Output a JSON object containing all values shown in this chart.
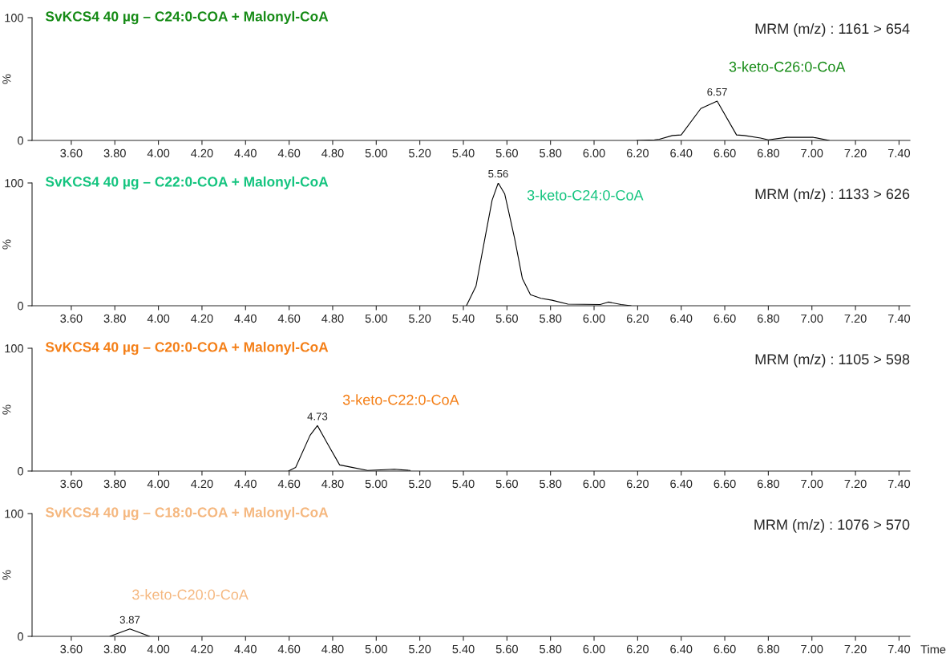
{
  "chart_data": [
    {
      "type": "line",
      "title": "SvKCS4 40 µg – C24:0-COA + Malonyl-CoA",
      "ylabel": "%",
      "xlim": [
        3.42,
        7.45
      ],
      "ylim": [
        0,
        100
      ],
      "yticks": [
        0,
        100
      ],
      "xticks": [
        {
          "value": 3.6,
          "label": "3.60"
        },
        {
          "value": 3.8,
          "label": "3.80"
        },
        {
          "value": 4.0,
          "label": "4.00"
        },
        {
          "value": 4.2,
          "label": "4.20"
        },
        {
          "value": 4.4,
          "label": "4.40"
        },
        {
          "value": 4.6,
          "label": "4.60"
        },
        {
          "value": 4.8,
          "label": "4.80"
        },
        {
          "value": 5.0,
          "label": "5.00"
        },
        {
          "value": 5.2,
          "label": "5.20"
        },
        {
          "value": 5.4,
          "label": "5.40"
        },
        {
          "value": 5.6,
          "label": "5.60"
        },
        {
          "value": 5.8,
          "label": "5.80"
        },
        {
          "value": 6.0,
          "label": "6.00"
        },
        {
          "value": 6.2,
          "label": "6.20"
        },
        {
          "value": 6.4,
          "label": "6.40"
        },
        {
          "value": 6.6,
          "label": "6.60"
        },
        {
          "value": 6.8,
          "label": "6.80"
        },
        {
          "value": 7.0,
          "label": "7.00"
        },
        {
          "value": 7.2,
          "label": "7.20"
        },
        {
          "value": 7.4,
          "label": "7.40"
        }
      ],
      "series": [
        {
          "name": "3-keto-C26:0-CoA",
          "color": "#000000",
          "x": [
            6.196,
            6.277,
            6.3,
            6.36,
            6.4,
            6.49,
            6.565,
            6.654,
            6.69,
            6.764,
            6.8,
            6.885,
            7.007,
            7.08
          ],
          "values": [
            0,
            0.5,
            1,
            4,
            4.5,
            26,
            32,
            4.5,
            4,
            2,
            0.5,
            2.5,
            2.5,
            0
          ]
        }
      ],
      "annotations": [
        "MRM (m/z) : 1161 > 654",
        {
          "text": "6.57",
          "x": 6.565,
          "y": 32
        }
      ],
      "grid": false,
      "legend": false
    },
    {
      "type": "line",
      "title": "SvKCS4 40 µg – C22:0-COA + Malonyl-CoA",
      "ylabel": "%",
      "xlim": [
        3.42,
        7.45
      ],
      "ylim": [
        0,
        100
      ],
      "yticks": [
        0,
        100
      ],
      "xticks": [
        {
          "value": 3.6,
          "label": "3.60"
        },
        {
          "value": 3.8,
          "label": "3.80"
        },
        {
          "value": 4.0,
          "label": "4.00"
        },
        {
          "value": 4.2,
          "label": "4.20"
        },
        {
          "value": 4.4,
          "label": "4.40"
        },
        {
          "value": 4.6,
          "label": "4.60"
        },
        {
          "value": 4.8,
          "label": "4.80"
        },
        {
          "value": 5.0,
          "label": "5.00"
        },
        {
          "value": 5.2,
          "label": "5.20"
        },
        {
          "value": 5.4,
          "label": "5.40"
        },
        {
          "value": 5.6,
          "label": "5.60"
        },
        {
          "value": 5.8,
          "label": "5.80"
        },
        {
          "value": 6.0,
          "label": "6.00"
        },
        {
          "value": 6.2,
          "label": "6.20"
        },
        {
          "value": 6.4,
          "label": "6.40"
        },
        {
          "value": 6.6,
          "label": "6.60"
        },
        {
          "value": 6.8,
          "label": "6.80"
        },
        {
          "value": 7.0,
          "label": "7.00"
        },
        {
          "value": 7.2,
          "label": "7.20"
        },
        {
          "value": 7.4,
          "label": "7.40"
        }
      ],
      "series": [
        {
          "name": "3-keto-C24:0-CoA",
          "color": "#000000",
          "x": [
            5.414,
            5.458,
            5.499,
            5.532,
            5.56,
            5.59,
            5.635,
            5.671,
            5.708,
            5.756,
            5.807,
            5.88,
            6.028,
            6.065,
            6.124,
            6.17
          ],
          "values": [
            0,
            16,
            55,
            86,
            100,
            91,
            55,
            22,
            9,
            6,
            4.5,
            1.3,
            1,
            3,
            1,
            0
          ]
        }
      ],
      "annotations": [
        "MRM (m/z) : 1133 > 626",
        {
          "text": "5.56",
          "x": 5.56,
          "y": 100
        }
      ],
      "grid": false,
      "legend": false
    },
    {
      "type": "line",
      "title": "SvKCS4 40 µg – C20:0-COA + Malonyl-CoA",
      "ylabel": "%",
      "xlim": [
        3.42,
        7.45
      ],
      "ylim": [
        0,
        100
      ],
      "yticks": [
        0,
        100
      ],
      "xticks": [
        {
          "value": 3.6,
          "label": "3.60"
        },
        {
          "value": 3.8,
          "label": "3.80"
        },
        {
          "value": 4.0,
          "label": "4.00"
        },
        {
          "value": 4.2,
          "label": "4.20"
        },
        {
          "value": 4.4,
          "label": "4.40"
        },
        {
          "value": 4.6,
          "label": "4.60"
        },
        {
          "value": 4.8,
          "label": "4.80"
        },
        {
          "value": 5.0,
          "label": "5.00"
        },
        {
          "value": 5.2,
          "label": "5.20"
        },
        {
          "value": 5.4,
          "label": "5.40"
        },
        {
          "value": 5.6,
          "label": "5.60"
        },
        {
          "value": 5.8,
          "label": "5.80"
        },
        {
          "value": 6.0,
          "label": "6.00"
        },
        {
          "value": 6.2,
          "label": "6.20"
        },
        {
          "value": 6.4,
          "label": "6.40"
        },
        {
          "value": 6.6,
          "label": "6.60"
        },
        {
          "value": 6.8,
          "label": "6.80"
        },
        {
          "value": 7.0,
          "label": "7.00"
        },
        {
          "value": 7.2,
          "label": "7.20"
        },
        {
          "value": 7.4,
          "label": "7.40"
        }
      ],
      "series": [
        {
          "name": "3-keto-C22:0-CoA",
          "color": "#000000",
          "x": [
            4.597,
            4.63,
            4.696,
            4.73,
            4.777,
            4.832,
            4.888,
            4.96,
            5.083,
            5.156
          ],
          "values": [
            0,
            3,
            29,
            37,
            22,
            5,
            3,
            0.5,
            1.5,
            0.5
          ]
        }
      ],
      "annotations": [
        "MRM (m/z) : 1105 > 598",
        {
          "text": "4.73",
          "x": 4.73,
          "y": 37
        }
      ],
      "grid": false,
      "legend": false
    },
    {
      "type": "line",
      "title": "SvKCS4 40 µg – C18:0-COA + Malonyl-CoA",
      "ylabel": "%",
      "xlabel": "Time",
      "xlim": [
        3.42,
        7.45
      ],
      "ylim": [
        0,
        100
      ],
      "yticks": [
        0,
        100
      ],
      "xticks": [
        {
          "value": 3.6,
          "label": "3.60"
        },
        {
          "value": 3.8,
          "label": "3.80"
        },
        {
          "value": 4.0,
          "label": "4.00"
        },
        {
          "value": 4.2,
          "label": "4.20"
        },
        {
          "value": 4.4,
          "label": "4.40"
        },
        {
          "value": 4.6,
          "label": "4.60"
        },
        {
          "value": 4.8,
          "label": "4.80"
        },
        {
          "value": 5.0,
          "label": "5.00"
        },
        {
          "value": 5.2,
          "label": "5.20"
        },
        {
          "value": 5.4,
          "label": "5.40"
        },
        {
          "value": 5.6,
          "label": "5.60"
        },
        {
          "value": 5.8,
          "label": "5.80"
        },
        {
          "value": 6.0,
          "label": "6.00"
        },
        {
          "value": 6.2,
          "label": "6.20"
        },
        {
          "value": 6.4,
          "label": "6.40"
        },
        {
          "value": 6.6,
          "label": "6.60"
        },
        {
          "value": 6.8,
          "label": "6.80"
        },
        {
          "value": 7.0,
          "label": "7.00"
        },
        {
          "value": 7.2,
          "label": "7.20"
        },
        {
          "value": 7.4,
          "label": "7.40"
        }
      ],
      "series": [
        {
          "name": "3-keto-C20:0-CoA",
          "color": "#000000",
          "x": [
            3.777,
            3.869,
            3.96
          ],
          "values": [
            0,
            6,
            0
          ]
        }
      ],
      "annotations": [
        "MRM (m/z) : 1076 > 570",
        {
          "text": "3.87",
          "x": 3.869,
          "y": 6
        }
      ],
      "grid": false,
      "legend": false
    }
  ]
}
